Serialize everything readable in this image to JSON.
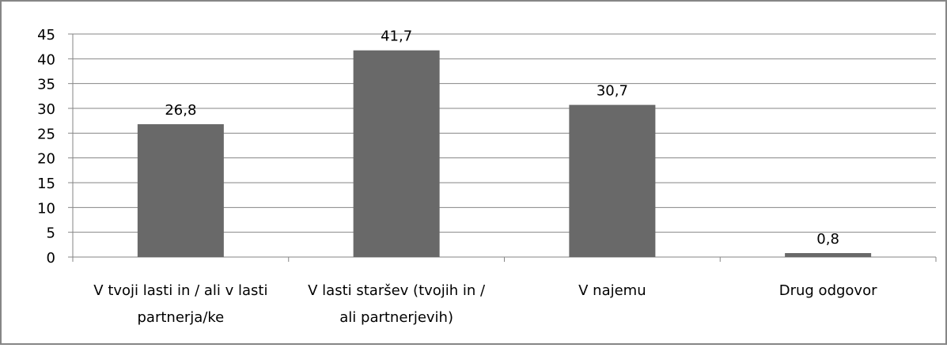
{
  "chart_data": {
    "type": "bar",
    "categories": [
      [
        "V tvoji lasti in / ali v lasti",
        "partnerja/ke"
      ],
      [
        "V lasti staršev (tvojih in /",
        "ali partnerjevih)"
      ],
      [
        "V najemu"
      ],
      [
        "Drug odgovor"
      ]
    ],
    "values": [
      26.8,
      41.7,
      30.7,
      0.8
    ],
    "data_labels": [
      "26,8",
      "41,7",
      "30,7",
      "0,8"
    ],
    "ylim": [
      0,
      45
    ],
    "yticks": [
      0,
      5,
      10,
      15,
      20,
      25,
      30,
      35,
      40,
      45
    ],
    "title": "",
    "xlabel": "",
    "ylabel": "",
    "grid": true,
    "colors": {
      "bar": "#696969",
      "grid": "#868686",
      "axis": "#868686",
      "border": "#868686"
    }
  }
}
